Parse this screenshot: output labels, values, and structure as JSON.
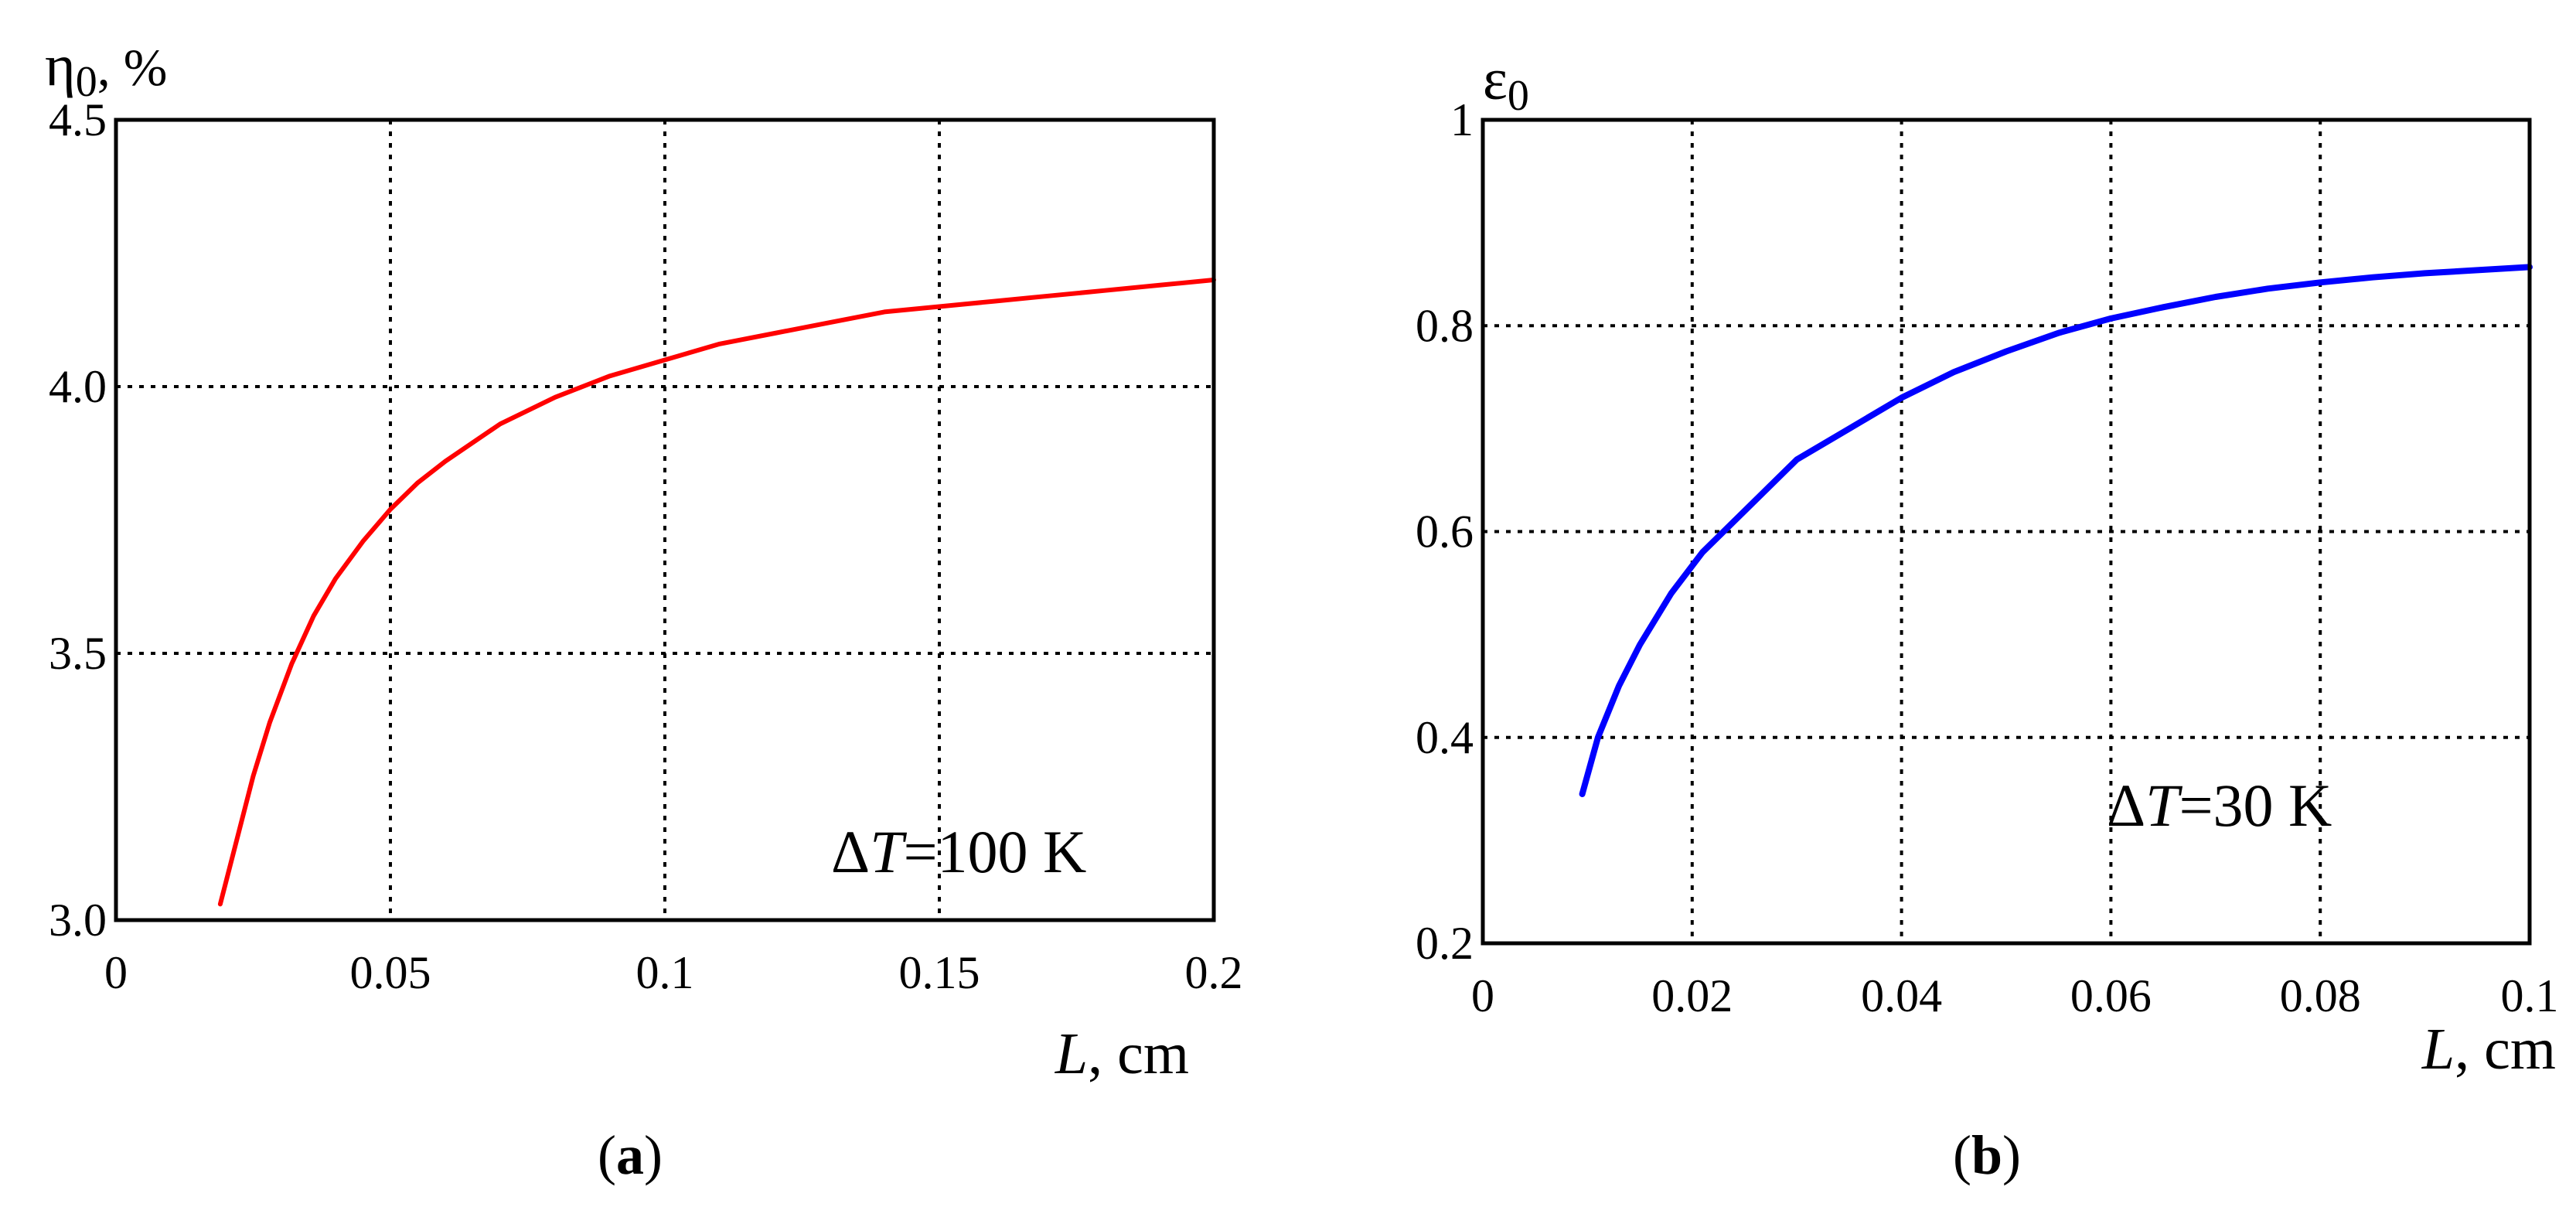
{
  "chart_data": [
    {
      "type": "line",
      "panel": "(a)",
      "panel_letter": "a",
      "ylabel_symbol": "η",
      "ylabel_sub": "0",
      "ylabel_unit": ", %",
      "xlabel_var": "L",
      "xlabel_unit": ", cm",
      "annotation_delta": "Δ",
      "annotation_var": "T",
      "annotation_value": "=100 K",
      "xlim": [
        0,
        0.2
      ],
      "ylim": [
        3.0,
        4.5
      ],
      "x_ticks": [
        0,
        0.05,
        0.1,
        0.15,
        0.2
      ],
      "x_tick_labels": [
        "0",
        "0.05",
        "0.1",
        "0.15",
        "0.2"
      ],
      "y_ticks": [
        3.0,
        3.5,
        4.0,
        4.5
      ],
      "y_tick_labels": [
        "3.0",
        "3.5",
        "4.0",
        "4.5"
      ],
      "x_grid": [
        0.05,
        0.1,
        0.15
      ],
      "y_grid": [
        3.5,
        4.0
      ],
      "color": "#ff0000",
      "series": [
        {
          "name": "η0",
          "x": [
            0.019,
            0.022,
            0.025,
            0.028,
            0.032,
            0.036,
            0.04,
            0.045,
            0.05,
            0.055,
            0.06,
            0.07,
            0.08,
            0.09,
            0.1,
            0.11,
            0.12,
            0.13,
            0.14,
            0.15,
            0.16,
            0.17,
            0.18,
            0.19,
            0.2
          ],
          "y": [
            3.03,
            3.15,
            3.27,
            3.37,
            3.48,
            3.57,
            3.64,
            3.71,
            3.77,
            3.82,
            3.86,
            3.93,
            3.98,
            4.02,
            4.05,
            4.08,
            4.1,
            4.12,
            4.14,
            4.15,
            4.16,
            4.17,
            4.18,
            4.19,
            4.2
          ]
        }
      ]
    },
    {
      "type": "line",
      "panel": "(b)",
      "panel_letter": "b",
      "ylabel_symbol": "ε",
      "ylabel_sub": "0",
      "xlabel_var": "L",
      "xlabel_unit": ", cm",
      "annotation_delta": "Δ",
      "annotation_var": "T",
      "annotation_value": "=30 K",
      "xlim": [
        0,
        0.1
      ],
      "ylim": [
        0.2,
        1.0
      ],
      "x_ticks": [
        0,
        0.02,
        0.04,
        0.06,
        0.08,
        0.1
      ],
      "x_tick_labels": [
        "0",
        "0.02",
        "0.04",
        "0.06",
        "0.08",
        "0.1"
      ],
      "y_ticks": [
        0.2,
        0.4,
        0.6,
        0.8,
        1.0
      ],
      "y_tick_labels": [
        "0.2",
        "0.4",
        "0.6",
        "0.8",
        "1"
      ],
      "x_grid": [
        0.02,
        0.04,
        0.06,
        0.08
      ],
      "y_grid": [
        0.4,
        0.6,
        0.8
      ],
      "color": "#0000ff",
      "series": [
        {
          "name": "ε0",
          "x": [
            0.0095,
            0.011,
            0.013,
            0.015,
            0.018,
            0.021,
            0.025,
            0.03,
            0.035,
            0.04,
            0.045,
            0.05,
            0.055,
            0.06,
            0.065,
            0.07,
            0.075,
            0.08,
            0.085,
            0.09,
            0.095,
            0.1
          ],
          "y": [
            0.345,
            0.4,
            0.45,
            0.49,
            0.54,
            0.58,
            0.62,
            0.67,
            0.7,
            0.73,
            0.755,
            0.775,
            0.793,
            0.807,
            0.818,
            0.828,
            0.836,
            0.842,
            0.847,
            0.851,
            0.854,
            0.857
          ]
        }
      ]
    }
  ]
}
